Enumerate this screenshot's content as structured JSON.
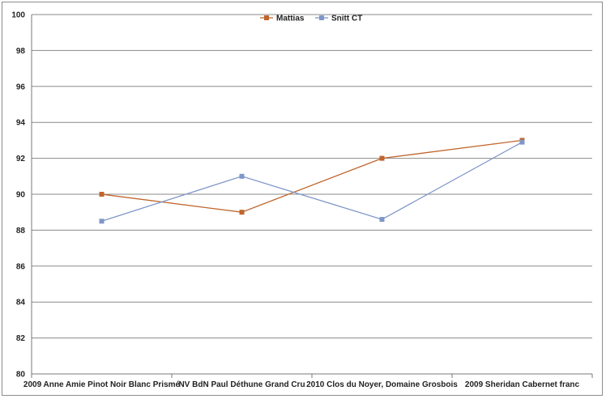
{
  "chart_data": {
    "type": "line",
    "title": "",
    "xlabel": "",
    "ylabel": "",
    "categories": [
      "2009 Anne Amie Pinot Noir Blanc Prismé",
      "NV BdN Paul Déthune Grand Cru",
      "2010 Clos du Noyer, Domaine Grosbois",
      "2009 Sheridan Cabernet franc"
    ],
    "ylim": [
      80,
      100
    ],
    "yticks": [
      80,
      82,
      84,
      86,
      88,
      90,
      92,
      94,
      96,
      98,
      100
    ],
    "grid": true,
    "legend_position": "top-center",
    "series": [
      {
        "name": "Mattias",
        "values": [
          90,
          89,
          92,
          93
        ],
        "color": "#c0652c",
        "marker": "square"
      },
      {
        "name": "Snitt CT",
        "values": [
          88.5,
          91,
          88.6,
          92.9
        ],
        "color": "#7f96c8",
        "marker": "square"
      }
    ]
  }
}
